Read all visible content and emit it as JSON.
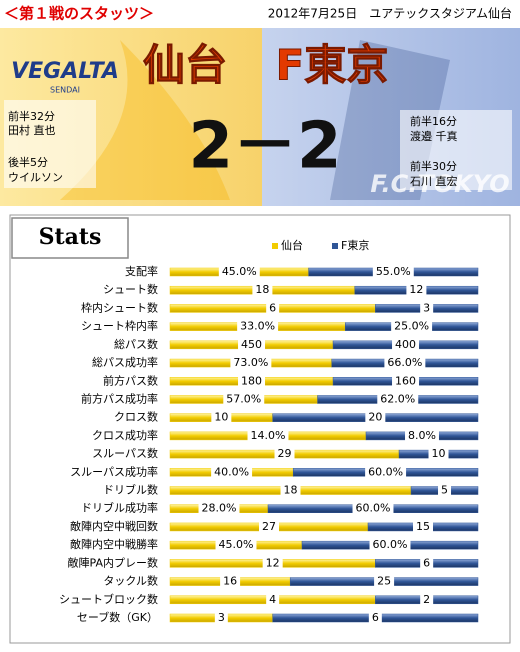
{
  "header": {
    "title": "＜第１戦のスタッツ＞",
    "date_venue": "2012年7月25日　ユアテックスタジアム仙台"
  },
  "banner": {
    "home": "仙台",
    "away": "F東京",
    "score": "2－2",
    "home_logo": [
      "VEGALTA",
      "SENDAI"
    ],
    "away_logo": "F.C.TOKYO",
    "home_goals": [
      [
        "前半32分",
        "田村 直也"
      ],
      [
        "後半5分",
        "ウイルソン"
      ]
    ],
    "away_goals": [
      [
        "前半16分",
        "渡邉 千真"
      ],
      [
        "前半30分",
        "石川 直宏"
      ]
    ]
  },
  "chart_data": {
    "type": "bar100",
    "title": "Stats",
    "categories": [
      "支配率",
      "シュート数",
      "枠内シュート数",
      "シュート枠内率",
      "総パス数",
      "総パス成功率",
      "前方パス数",
      "前方パス成功率",
      "クロス数",
      "クロス成功率",
      "スルーパス数",
      "スルーパス成功率",
      "ドリブル数",
      "ドリブル成功率",
      "敵陣内空中戦回数",
      "敵陣内空中戦勝率",
      "敵陣PA内プレー数",
      "タックル数",
      "シュートブロック数",
      "セーブ数（GK）"
    ],
    "series": [
      {
        "name": "仙台",
        "color": "#f2cc00",
        "values": [
          45,
          18,
          6,
          33,
          450,
          73,
          180,
          57,
          10,
          14,
          29,
          40,
          18,
          28,
          27,
          45,
          12,
          16,
          4,
          3
        ],
        "value_labels": [
          "45.0%",
          "18",
          "6",
          "33.0%",
          "450",
          "73.0%",
          "180",
          "57.0%",
          "10",
          "14.0%",
          "29",
          "40.0%",
          "18",
          "28.0%",
          "27",
          "45.0%",
          "12",
          "16",
          "4",
          "3"
        ]
      },
      {
        "name": "F東京",
        "color": "#2f5597",
        "values": [
          55,
          12,
          3,
          25,
          400,
          66,
          160,
          62,
          20,
          8,
          10,
          60,
          5,
          60,
          15,
          60,
          6,
          25,
          2,
          6
        ],
        "value_labels": [
          "55.0%",
          "12",
          "3",
          "25.0%",
          "400",
          "66.0%",
          "160",
          "62.0%",
          "20",
          "8.0%",
          "10",
          "60.0%",
          "5",
          "60.0%",
          "15",
          "60.0%",
          "6",
          "25",
          "2",
          "6"
        ]
      }
    ],
    "legend": "top"
  }
}
